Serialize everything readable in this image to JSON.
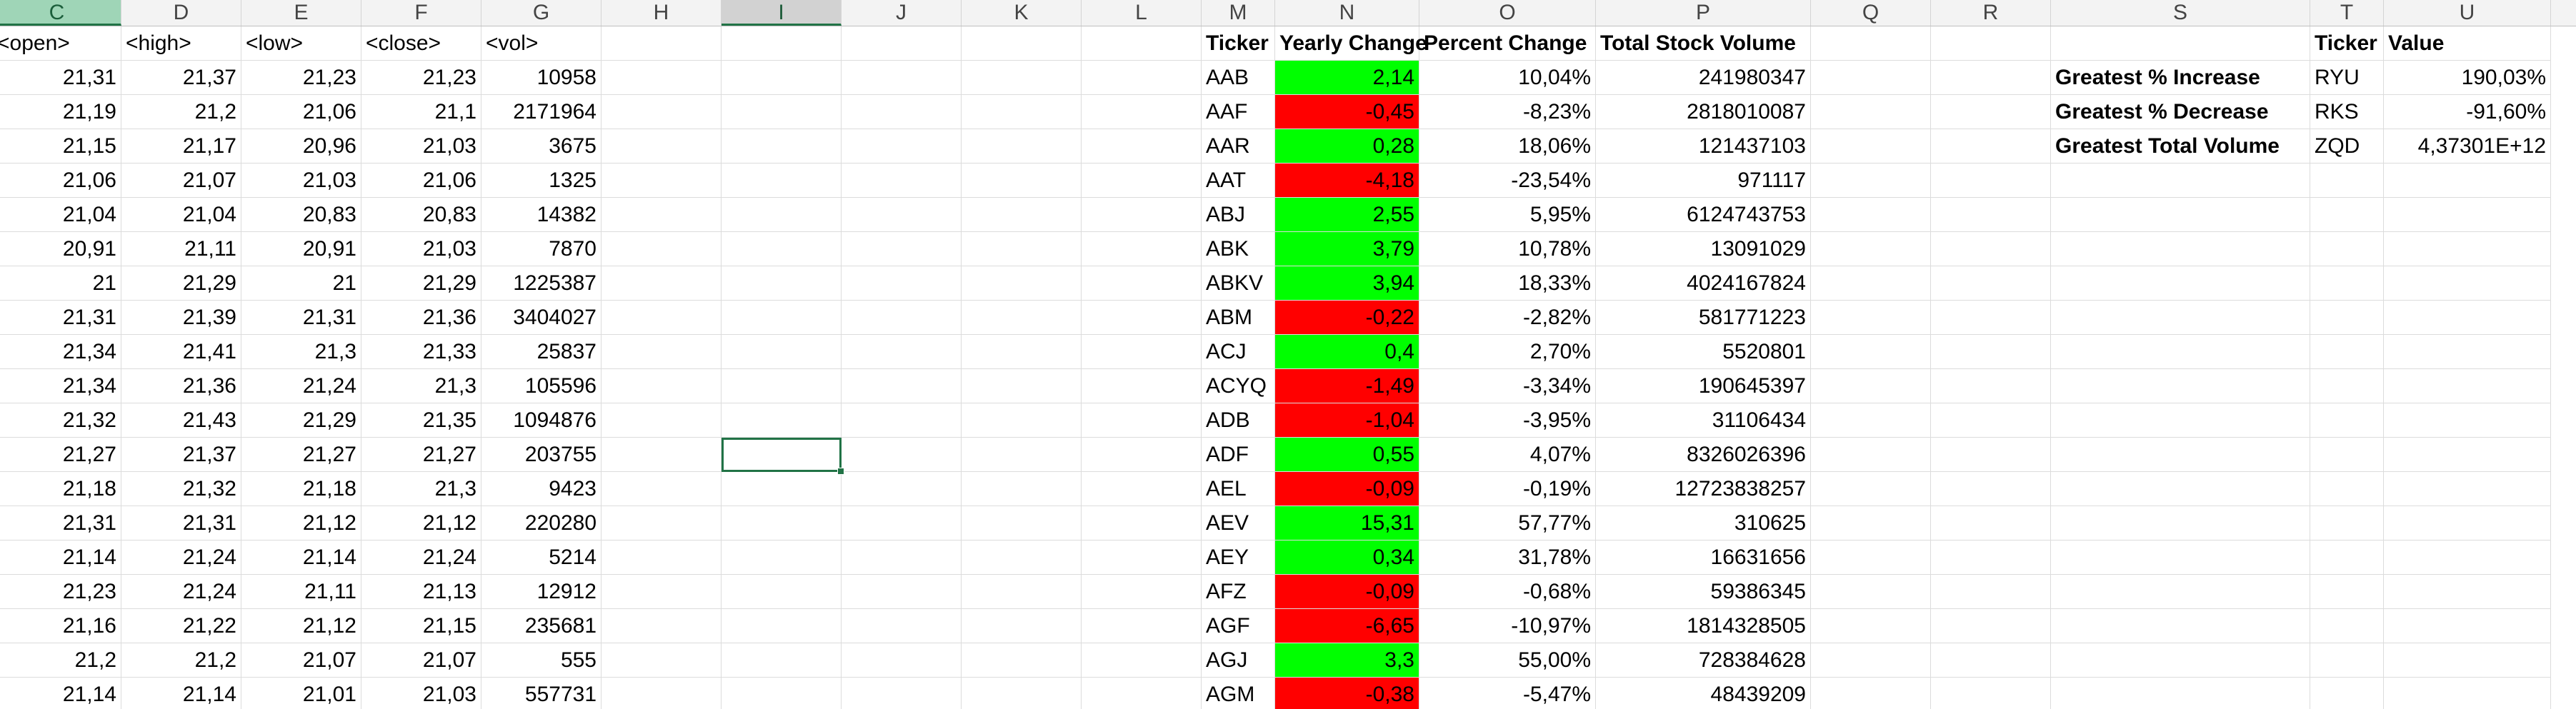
{
  "columns": [
    {
      "letter": "C",
      "state": "first-selected"
    },
    {
      "letter": "D",
      "state": ""
    },
    {
      "letter": "E",
      "state": ""
    },
    {
      "letter": "F",
      "state": ""
    },
    {
      "letter": "G",
      "state": ""
    },
    {
      "letter": "H",
      "state": ""
    },
    {
      "letter": "I",
      "state": "selected"
    },
    {
      "letter": "J",
      "state": ""
    },
    {
      "letter": "K",
      "state": ""
    },
    {
      "letter": "L",
      "state": ""
    },
    {
      "letter": "M",
      "state": ""
    },
    {
      "letter": "N",
      "state": ""
    },
    {
      "letter": "O",
      "state": ""
    },
    {
      "letter": "P",
      "state": ""
    },
    {
      "letter": "Q",
      "state": ""
    },
    {
      "letter": "R",
      "state": ""
    },
    {
      "letter": "S",
      "state": ""
    },
    {
      "letter": "T",
      "state": ""
    },
    {
      "letter": "U",
      "state": ""
    }
  ],
  "price_table": {
    "headers": [
      "<open>",
      "<high>",
      "<low>",
      "<close>",
      "<vol>"
    ],
    "rows": [
      [
        "21,31",
        "21,37",
        "21,23",
        "21,23",
        "10958"
      ],
      [
        "21,19",
        "21,2",
        "21,06",
        "21,1",
        "2171964"
      ],
      [
        "21,15",
        "21,17",
        "20,96",
        "21,03",
        "3675"
      ],
      [
        "21,06",
        "21,07",
        "21,03",
        "21,06",
        "1325"
      ],
      [
        "21,04",
        "21,04",
        "20,83",
        "20,83",
        "14382"
      ],
      [
        "20,91",
        "21,11",
        "20,91",
        "21,03",
        "7870"
      ],
      [
        "21",
        "21,29",
        "21",
        "21,29",
        "1225387"
      ],
      [
        "21,31",
        "21,39",
        "21,31",
        "21,36",
        "3404027"
      ],
      [
        "21,34",
        "21,41",
        "21,3",
        "21,33",
        "25837"
      ],
      [
        "21,34",
        "21,36",
        "21,24",
        "21,3",
        "105596"
      ],
      [
        "21,32",
        "21,43",
        "21,29",
        "21,35",
        "1094876"
      ],
      [
        "21,27",
        "21,37",
        "21,27",
        "21,27",
        "203755"
      ],
      [
        "21,18",
        "21,32",
        "21,18",
        "21,3",
        "9423"
      ],
      [
        "21,31",
        "21,31",
        "21,12",
        "21,12",
        "220280"
      ],
      [
        "21,14",
        "21,24",
        "21,14",
        "21,24",
        "5214"
      ],
      [
        "21,23",
        "21,24",
        "21,11",
        "21,13",
        "12912"
      ],
      [
        "21,16",
        "21,22",
        "21,12",
        "21,15",
        "235681"
      ],
      [
        "21,2",
        "21,2",
        "21,07",
        "21,07",
        "555"
      ],
      [
        "21,14",
        "21,14",
        "21,01",
        "21,03",
        "557731"
      ]
    ]
  },
  "summary_table": {
    "headers": [
      "Ticker",
      "Yearly Change",
      "Percent Change",
      "Total Stock Volume"
    ],
    "rows": [
      {
        "ticker": "AAB",
        "change": "2,14",
        "status": "green",
        "percent": "10,04%",
        "volume": "241980347"
      },
      {
        "ticker": "AAF",
        "change": "-0,45",
        "status": "red",
        "percent": "-8,23%",
        "volume": "2818010087"
      },
      {
        "ticker": "AAR",
        "change": "0,28",
        "status": "green",
        "percent": "18,06%",
        "volume": "121437103"
      },
      {
        "ticker": "AAT",
        "change": "-4,18",
        "status": "red",
        "percent": "-23,54%",
        "volume": "971117"
      },
      {
        "ticker": "ABJ",
        "change": "2,55",
        "status": "green",
        "percent": "5,95%",
        "volume": "6124743753"
      },
      {
        "ticker": "ABK",
        "change": "3,79",
        "status": "green",
        "percent": "10,78%",
        "volume": "13091029"
      },
      {
        "ticker": "ABKV",
        "change": "3,94",
        "status": "green",
        "percent": "18,33%",
        "volume": "4024167824"
      },
      {
        "ticker": "ABM",
        "change": "-0,22",
        "status": "red",
        "percent": "-2,82%",
        "volume": "581771223"
      },
      {
        "ticker": "ACJ",
        "change": "0,4",
        "status": "green",
        "percent": "2,70%",
        "volume": "5520801"
      },
      {
        "ticker": "ACYQ",
        "change": "-1,49",
        "status": "red",
        "percent": "-3,34%",
        "volume": "190645397"
      },
      {
        "ticker": "ADB",
        "change": "-1,04",
        "status": "red",
        "percent": "-3,95%",
        "volume": "31106434"
      },
      {
        "ticker": "ADF",
        "change": "0,55",
        "status": "green",
        "percent": "4,07%",
        "volume": "8326026396"
      },
      {
        "ticker": "AEL",
        "change": "-0,09",
        "status": "red",
        "percent": "-0,19%",
        "volume": "12723838257"
      },
      {
        "ticker": "AEV",
        "change": "15,31",
        "status": "green",
        "percent": "57,77%",
        "volume": "310625"
      },
      {
        "ticker": "AEY",
        "change": "0,34",
        "status": "green",
        "percent": "31,78%",
        "volume": "16631656"
      },
      {
        "ticker": "AFZ",
        "change": "-0,09",
        "status": "red",
        "percent": "-0,68%",
        "volume": "59386345"
      },
      {
        "ticker": "AGF",
        "change": "-6,65",
        "status": "red",
        "percent": "-10,97%",
        "volume": "1814328505"
      },
      {
        "ticker": "AGJ",
        "change": "3,3",
        "status": "green",
        "percent": "55,00%",
        "volume": "728384628"
      },
      {
        "ticker": "AGM",
        "change": "-0,38",
        "status": "red",
        "percent": "-5,47%",
        "volume": "48439209"
      }
    ]
  },
  "greatest_table": {
    "headers": [
      "Ticker",
      "Value"
    ],
    "rows": [
      {
        "label": "Greatest % Increase",
        "ticker": "RYU",
        "value": "190,03%"
      },
      {
        "label": "Greatest % Decrease",
        "ticker": "RKS",
        "value": "-91,60%"
      },
      {
        "label": "Greatest Total Volume",
        "ticker": "ZQD",
        "value": "4,37301E+12"
      }
    ]
  },
  "colors": {
    "positive": "#00ff00",
    "negative": "#ff0000",
    "selection": "#217346"
  }
}
